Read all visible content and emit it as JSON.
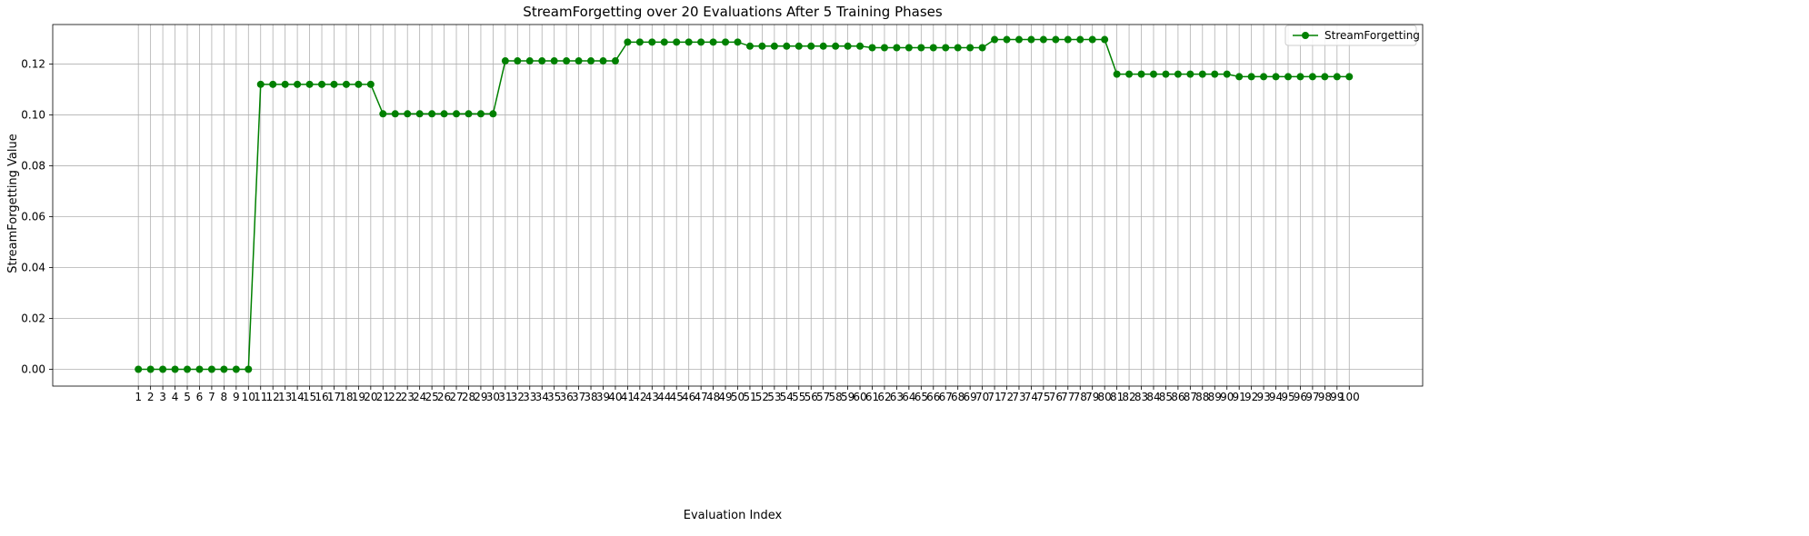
{
  "chart_data": {
    "type": "line",
    "title": "StreamForgetting over 20 Evaluations After 5 Training Phases",
    "xlabel": "Evaluation Index",
    "ylabel": "StreamForgetting Value",
    "grid": true,
    "legend_placement": "top-right",
    "x": [
      1,
      2,
      3,
      4,
      5,
      6,
      7,
      8,
      9,
      10,
      11,
      12,
      13,
      14,
      15,
      16,
      17,
      18,
      19,
      20,
      21,
      22,
      23,
      24,
      25,
      26,
      27,
      28,
      29,
      30,
      31,
      32,
      33,
      34,
      35,
      36,
      37,
      38,
      39,
      40,
      41,
      42,
      43,
      44,
      45,
      46,
      47,
      48,
      49,
      50,
      51,
      52,
      53,
      54,
      55,
      56,
      57,
      58,
      59,
      60,
      61,
      62,
      63,
      64,
      65,
      66,
      67,
      68,
      69,
      70,
      71,
      72,
      73,
      74,
      75,
      76,
      77,
      78,
      79,
      80,
      81,
      82,
      83,
      84,
      85,
      86,
      87,
      88,
      89,
      90,
      91,
      92,
      93,
      94,
      95,
      96,
      97,
      98,
      99,
      100
    ],
    "xlim": [
      -6,
      106
    ],
    "ylim": [
      -0.0066,
      0.1355
    ],
    "yticks": [
      0.0,
      0.02,
      0.04,
      0.06,
      0.08,
      0.1,
      0.12
    ],
    "yticklabels": [
      "0.00",
      "0.02",
      "0.04",
      "0.06",
      "0.08",
      "0.10",
      "0.12"
    ],
    "series": [
      {
        "name": "StreamForgetting",
        "color": "#008000",
        "marker": "circle",
        "values": [
          0,
          0,
          0,
          0,
          0,
          0,
          0,
          0,
          0,
          0,
          0.112,
          0.112,
          0.112,
          0.112,
          0.112,
          0.112,
          0.112,
          0.112,
          0.112,
          0.112,
          0.1004,
          0.1004,
          0.1004,
          0.1004,
          0.1004,
          0.1004,
          0.1004,
          0.1004,
          0.1004,
          0.1004,
          0.1212,
          0.1212,
          0.1212,
          0.1212,
          0.1212,
          0.1212,
          0.1212,
          0.1212,
          0.1212,
          0.1212,
          0.1286,
          0.1286,
          0.1286,
          0.1286,
          0.1286,
          0.1286,
          0.1286,
          0.1286,
          0.1286,
          0.1286,
          0.127,
          0.127,
          0.127,
          0.127,
          0.127,
          0.127,
          0.127,
          0.127,
          0.127,
          0.127,
          0.1264,
          0.1264,
          0.1264,
          0.1264,
          0.1264,
          0.1264,
          0.1264,
          0.1264,
          0.1264,
          0.1264,
          0.1296,
          0.1296,
          0.1296,
          0.1296,
          0.1296,
          0.1296,
          0.1296,
          0.1296,
          0.1296,
          0.1296,
          0.116,
          0.116,
          0.116,
          0.116,
          0.116,
          0.116,
          0.116,
          0.116,
          0.116,
          0.116,
          0.115,
          0.115,
          0.115,
          0.115,
          0.115,
          0.115,
          0.115,
          0.115,
          0.115,
          0.115
        ]
      }
    ]
  }
}
